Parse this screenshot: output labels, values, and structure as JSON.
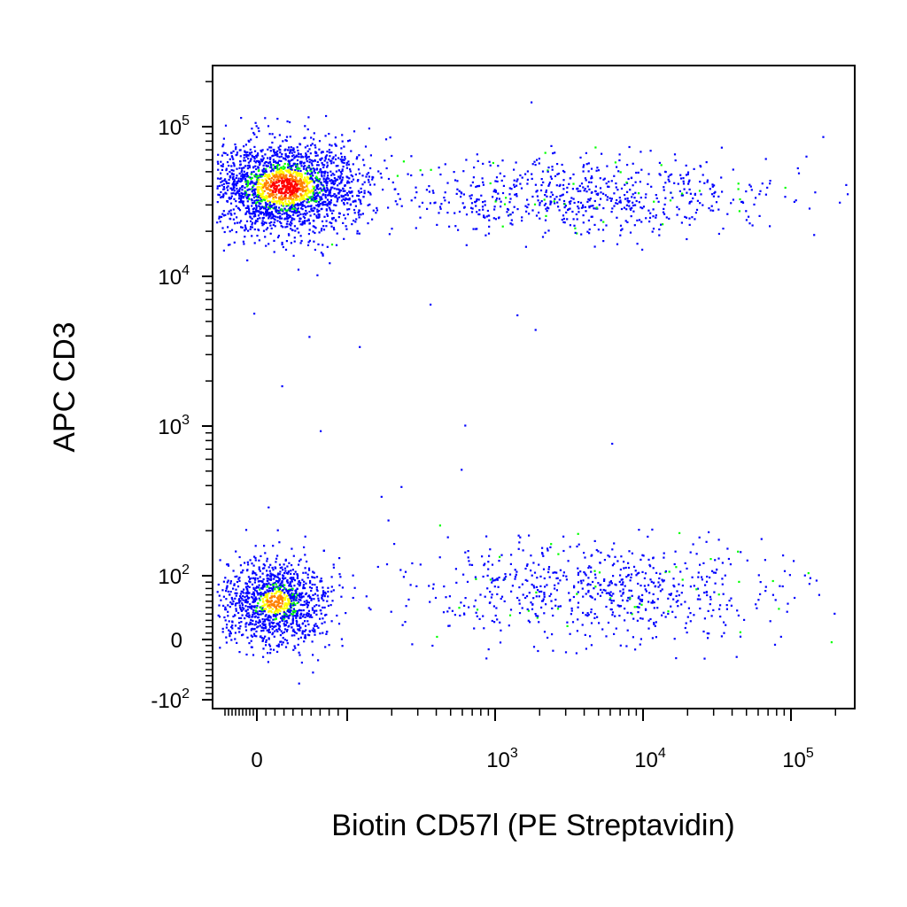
{
  "chart_data": {
    "type": "scatter",
    "xlabel": "Biotin CD57l (PE Streptavidin)",
    "ylabel": "APC CD3",
    "x_scale": "biexponential",
    "y_scale": "biexponential",
    "x_ticks": [
      {
        "base": "0",
        "exp": ""
      },
      {
        "base": "10",
        "exp": "3"
      },
      {
        "base": "10",
        "exp": "4"
      },
      {
        "base": "10",
        "exp": "5"
      }
    ],
    "y_ticks": [
      {
        "base": "10",
        "exp": "5"
      },
      {
        "base": "10",
        "exp": "4"
      },
      {
        "base": "10",
        "exp": "3"
      },
      {
        "base": "10",
        "exp": "2"
      },
      {
        "base": "0",
        "exp": ""
      },
      {
        "base": "-10",
        "exp": "2"
      }
    ],
    "density_colors": [
      "#0000ff",
      "#00ff00",
      "#ffff00",
      "#ff8000",
      "#ff0000"
    ],
    "populations": [
      {
        "x_center": 30,
        "y_center": 40000,
        "events": 2200,
        "peak_density": "high"
      },
      {
        "x_center": 4000,
        "y_center": 35000,
        "events": 700,
        "peak_density": "low"
      },
      {
        "x_center": 20,
        "y_center": 60,
        "events": 1200,
        "peak_density": "medium"
      },
      {
        "x_center": 5000,
        "y_center": 80,
        "events": 700,
        "peak_density": "low"
      }
    ],
    "grid": false,
    "legend": "none"
  }
}
